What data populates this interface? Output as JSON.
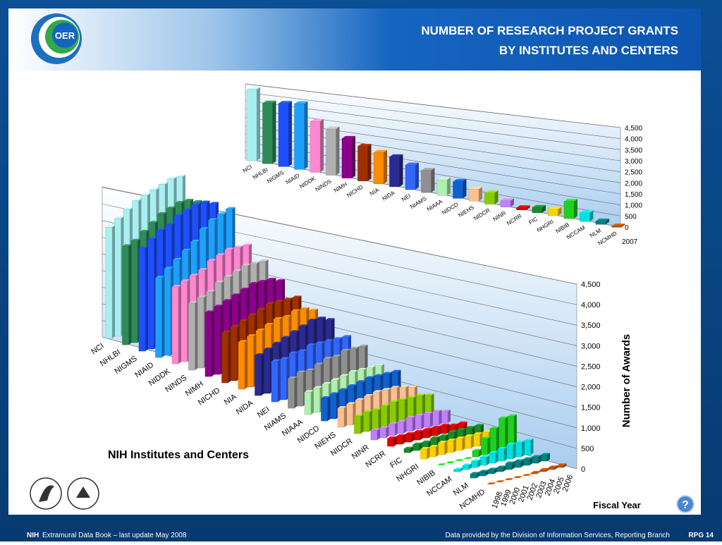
{
  "header": {
    "logo": "OER",
    "title_line1": "NUMBER OF RESEARCH PROJECT GRANTS",
    "title_line2": "BY INSTITUTES AND CENTERS"
  },
  "footer": {
    "brand": "NIH",
    "left": "Extramural Data Book – last update May 2008",
    "right": "Data provided by the Division of Information Services, Reporting Branch",
    "page": "RPG 14",
    "help": "?"
  },
  "chart_data": [
    {
      "type": "bar3d",
      "year": "2007",
      "categories": [
        "NCI",
        "NHLBI",
        "NIGMS",
        "NIAID",
        "NIDDK",
        "NINDS",
        "NIMH",
        "NICHD",
        "NIA",
        "NIDA",
        "NEI",
        "NIAMS",
        "NIAAA",
        "NIDCD",
        "NIEHS",
        "NIDCR",
        "NINR",
        "NCRR",
        "FIC",
        "NHGRI",
        "NIBIB",
        "NCCAM",
        "NLM",
        "NCMHD"
      ],
      "values": [
        4300,
        3600,
        3700,
        3800,
        2900,
        2600,
        2200,
        1900,
        1700,
        1600,
        1300,
        1150,
        800,
        850,
        600,
        550,
        300,
        100,
        250,
        300,
        800,
        400,
        150,
        50
      ],
      "colors": [
        "#a8f0f0",
        "#2e8b57",
        "#1e50ff",
        "#1fa0ff",
        "#ff88d0",
        "#b0b0b0",
        "#8b008b",
        "#a03000",
        "#ff8c00",
        "#2a2a90",
        "#3366ff",
        "#909090",
        "#b0f0b0",
        "#1060d0",
        "#ffc090",
        "#88cc00",
        "#c080ff",
        "#e00000",
        "#1a8a2a",
        "#ffd000",
        "#20d020",
        "#00e0e0",
        "#008080",
        "#c05000"
      ],
      "ylim": [
        0,
        4500
      ],
      "yticks": [
        0,
        500,
        {
          "value": 1000,
          "label": "1,000"
        },
        {
          "value": 1500,
          "label": "1,500"
        },
        {
          "value": 2000,
          "label": "2,000"
        },
        {
          "value": 2500,
          "label": "2,500"
        },
        {
          "value": 3000,
          "label": "3,000"
        },
        {
          "value": 3500,
          "label": "3,500"
        },
        {
          "value": 4000,
          "label": "4,000"
        },
        {
          "value": 4500,
          "label": "4,500"
        }
      ],
      "grid": true
    },
    {
      "type": "bar3d-matrix",
      "zlabel": "NIH Institutes and Centers",
      "xlabel": "Fiscal Year",
      "ylabel": "Number of Awards",
      "categories": [
        "NCI",
        "NHLBI",
        "NIGMS",
        "NIAID",
        "NIDDK",
        "NINDS",
        "NIMH",
        "NICHD",
        "NIA",
        "NIDA",
        "NEI",
        "NIAMS",
        "NIAAA",
        "NIDCD",
        "NIEHS",
        "NIDCR",
        "NINR",
        "NCRR",
        "FIC",
        "NHGRI",
        "NIBIB",
        "NCCAM",
        "NLM",
        "NCMHD"
      ],
      "years": [
        "1998",
        "1999",
        "2000",
        "2001",
        "2002",
        "2003",
        "2004",
        "2005",
        "2006"
      ],
      "values": [
        [
          3300,
          3500,
          3700,
          3900,
          4000,
          4100,
          4200,
          4300,
          4300
        ],
        [
          2900,
          3000,
          3200,
          3400,
          3600,
          3700,
          3800,
          3800,
          3700
        ],
        [
          3000,
          3200,
          3400,
          3500,
          3700,
          3800,
          3900,
          3900,
          3800
        ],
        [
          2300,
          2500,
          2700,
          2900,
          3100,
          3400,
          3600,
          3700,
          3800
        ],
        [
          2200,
          2300,
          2400,
          2500,
          2700,
          2800,
          2900,
          2900,
          2900
        ],
        [
          1900,
          2000,
          2100,
          2300,
          2400,
          2500,
          2600,
          2600,
          2600
        ],
        [
          1800,
          1900,
          2000,
          2100,
          2200,
          2300,
          2300,
          2300,
          2200
        ],
        [
          1400,
          1500,
          1600,
          1700,
          1800,
          1900,
          1900,
          1900,
          1900
        ],
        [
          1300,
          1400,
          1500,
          1600,
          1700,
          1700,
          1800,
          1800,
          1700
        ],
        [
          1100,
          1200,
          1300,
          1400,
          1500,
          1600,
          1700,
          1700,
          1600
        ],
        [
          1100,
          1100,
          1200,
          1200,
          1300,
          1300,
          1300,
          1300,
          1300
        ],
        [
          800,
          900,
          900,
          1000,
          1100,
          1100,
          1200,
          1200,
          1200
        ],
        [
          600,
          650,
          700,
          750,
          800,
          850,
          850,
          850,
          850
        ],
        [
          600,
          650,
          700,
          750,
          800,
          850,
          850,
          850,
          850
        ],
        [
          500,
          550,
          600,
          650,
          700,
          700,
          700,
          650,
          600
        ],
        [
          450,
          500,
          500,
          550,
          600,
          600,
          600,
          600,
          550
        ],
        [
          250,
          250,
          300,
          300,
          350,
          350,
          350,
          350,
          300
        ],
        [
          200,
          200,
          200,
          200,
          200,
          200,
          200,
          150,
          150
        ],
        [
          100,
          150,
          150,
          200,
          200,
          250,
          250,
          250,
          250
        ],
        [
          250,
          250,
          300,
          300,
          300,
          300,
          300,
          300,
          300
        ],
        [
          0,
          0,
          0,
          0,
          150,
          400,
          600,
          800,
          800
        ],
        [
          50,
          100,
          150,
          200,
          250,
          300,
          350,
          350,
          350
        ],
        [
          100,
          100,
          100,
          100,
          150,
          150,
          150,
          150,
          150
        ],
        [
          0,
          0,
          0,
          0,
          0,
          20,
          40,
          50,
          50
        ]
      ],
      "colors": [
        "#a8f0f0",
        "#2e8b57",
        "#1e50ff",
        "#1fa0ff",
        "#ff88d0",
        "#b0b0b0",
        "#8b008b",
        "#a03000",
        "#ff8c00",
        "#2a2a90",
        "#3366ff",
        "#909090",
        "#b0f0b0",
        "#1060d0",
        "#ffc090",
        "#88cc00",
        "#c080ff",
        "#e00000",
        "#1a8a2a",
        "#ffd000",
        "#20d020",
        "#00e0e0",
        "#008080",
        "#c05000"
      ],
      "ylim": [
        0,
        4500
      ],
      "yticks": [
        0,
        500,
        {
          "value": 1000,
          "label": "1,000"
        },
        {
          "value": 1500,
          "label": "1,500"
        },
        {
          "value": 2000,
          "label": "2,000"
        },
        {
          "value": 2500,
          "label": "2,500"
        },
        {
          "value": 3000,
          "label": "3,000"
        },
        {
          "value": 3500,
          "label": "3,500"
        },
        {
          "value": 4000,
          "label": "4,000"
        },
        {
          "value": 4500,
          "label": "4,500"
        }
      ],
      "grid": true
    }
  ]
}
